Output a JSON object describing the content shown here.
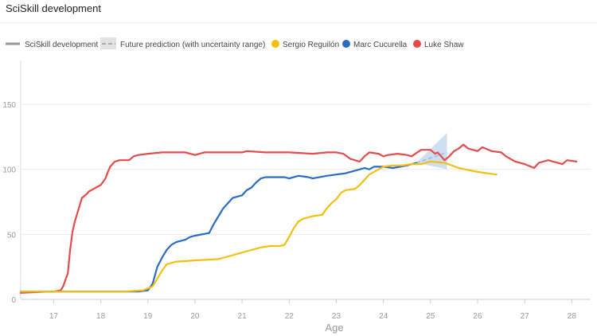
{
  "title": "SciSkill development",
  "chart_data": {
    "type": "line",
    "title": "SciSkill development",
    "xlabel": "Age",
    "ylabel": "",
    "xlim": [
      16.3,
      28.4
    ],
    "ylim": [
      0,
      180
    ],
    "x_ticks": [
      17,
      18,
      19,
      20,
      21,
      22,
      23,
      24,
      25,
      26,
      27,
      28
    ],
    "y_ticks": [
      0,
      50,
      100,
      150
    ],
    "grid": "horizontal",
    "legend": [
      {
        "label": "SciSkill development",
        "kind": "line",
        "color": "#999999"
      },
      {
        "label": "Future prediction (with uncertainty range)",
        "kind": "dashed-band",
        "color": "#bbbbbb"
      },
      {
        "label": "Sergio Reguilón",
        "kind": "dot",
        "color": "#f2c00f"
      },
      {
        "label": "Marc Cucurella",
        "kind": "dot",
        "color": "#2a6bc4"
      },
      {
        "label": "Luke Shaw",
        "kind": "dot",
        "color": "#e44c4c"
      }
    ],
    "series": [
      {
        "name": "Luke Shaw",
        "color": "#e44c4c",
        "x": [
          16.3,
          16.9,
          17.0,
          17.15,
          17.2,
          17.3,
          17.35,
          17.4,
          17.45,
          17.5,
          17.55,
          17.6,
          17.7,
          17.75,
          17.8,
          17.9,
          18.0,
          18.1,
          18.15,
          18.2,
          18.3,
          18.4,
          18.5,
          18.6,
          18.7,
          18.8,
          19.0,
          19.3,
          19.6,
          19.8,
          20.0,
          20.2,
          20.5,
          21.0,
          21.1,
          21.5,
          22.0,
          22.5,
          22.8,
          23.0,
          23.15,
          23.3,
          23.5,
          23.6,
          23.7,
          23.9,
          24.0,
          24.1,
          24.3,
          24.5,
          24.6,
          24.8,
          25.0,
          25.1,
          25.15,
          25.3,
          25.4,
          25.5,
          25.6,
          25.7,
          25.8,
          26.0,
          26.1,
          26.3,
          26.5,
          26.6,
          26.8,
          27.0,
          27.2,
          27.3,
          27.5,
          27.6,
          27.8,
          27.9,
          28.1
        ],
        "y": [
          5,
          6,
          6,
          7,
          10,
          20,
          38,
          52,
          60,
          66,
          72,
          78,
          81,
          83,
          84,
          86,
          88,
          93,
          98,
          102,
          106,
          107,
          107,
          107,
          110,
          111,
          112,
          113,
          113,
          113,
          111,
          113,
          113,
          113,
          114,
          113,
          113,
          112,
          113,
          113,
          112,
          108,
          106,
          110,
          113,
          112,
          110,
          111,
          112,
          111,
          110,
          115,
          115,
          112,
          113,
          107,
          110,
          114,
          116,
          119,
          116,
          114,
          117,
          114,
          113,
          110,
          106,
          104,
          101,
          105,
          107,
          106,
          104,
          107,
          106
        ]
      },
      {
        "name": "Marc Cucurella",
        "color": "#2a6bc4",
        "x": [
          16.3,
          18.0,
          18.6,
          18.8,
          19.0,
          19.1,
          19.2,
          19.3,
          19.4,
          19.5,
          19.6,
          19.8,
          19.9,
          20.0,
          20.3,
          20.4,
          20.5,
          20.6,
          20.7,
          20.8,
          21.0,
          21.1,
          21.2,
          21.3,
          21.4,
          21.5,
          21.7,
          21.9,
          22.0,
          22.2,
          22.4,
          22.5,
          22.8,
          23.0,
          23.2,
          23.4,
          23.5,
          23.6,
          23.7,
          23.8,
          24.0,
          24.2,
          24.5,
          24.7
        ],
        "y": [
          6,
          6,
          6,
          6,
          7,
          12,
          25,
          32,
          38,
          42,
          44,
          46,
          48,
          49,
          51,
          58,
          64,
          70,
          74,
          78,
          80,
          84,
          86,
          90,
          93,
          94,
          94,
          94,
          93,
          95,
          94,
          93,
          95,
          96,
          97,
          99,
          100,
          101,
          100,
          102,
          102,
          101,
          103,
          105
        ]
      },
      {
        "name": "Sergio Reguilón",
        "color": "#f2c00f",
        "x": [
          16.3,
          18.5,
          18.9,
          19.1,
          19.2,
          19.3,
          19.4,
          19.6,
          20.0,
          20.5,
          20.8,
          21.0,
          21.2,
          21.4,
          21.6,
          21.8,
          21.9,
          22.0,
          22.1,
          22.2,
          22.3,
          22.5,
          22.7,
          22.8,
          22.9,
          23.0,
          23.1,
          23.2,
          23.4,
          23.5,
          23.6,
          23.7,
          23.8,
          23.9,
          24.0,
          24.2,
          24.4,
          24.6,
          24.8,
          25.0,
          25.3,
          25.6,
          26.0,
          26.4
        ],
        "y": [
          6,
          6,
          7,
          10,
          16,
          22,
          27,
          29,
          30,
          31,
          34,
          36,
          38,
          40,
          41,
          41,
          42,
          48,
          55,
          60,
          62,
          64,
          65,
          70,
          74,
          77,
          82,
          84,
          85,
          88,
          92,
          96,
          98,
          100,
          102,
          103,
          103,
          104,
          104,
          106,
          105,
          101,
          98,
          96
        ]
      }
    ],
    "prediction": {
      "name": "Future prediction",
      "color": "#bbbbbb",
      "x": [
        24.7,
        25.35
      ],
      "y": [
        105,
        113
      ],
      "band_upper": [
        105,
        128
      ],
      "band_lower": [
        105,
        100
      ]
    }
  }
}
